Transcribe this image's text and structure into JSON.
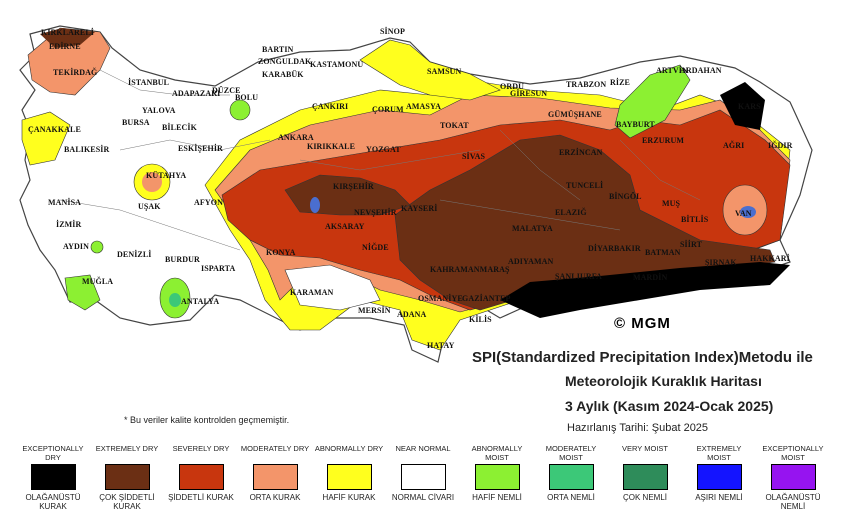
{
  "map": {
    "copyright": "© MGM",
    "cities": [
      "KIRKLARELİ",
      "EDİRNE",
      "TEKİRDAĞ",
      "İSTANBUL",
      "ÇANAKKALE",
      "BALIKESİR",
      "YALOVA",
      "BURSA",
      "BİLECİK",
      "ADAPAZARI",
      "DÜZCE",
      "BOLU",
      "BARTIN",
      "ZONGULDAK",
      "KARABÜK",
      "KASTAMONU",
      "SİNOP",
      "SAMSUN",
      "ORDU",
      "GİRESUN",
      "TRABZON",
      "RİZE",
      "ARTVİN",
      "ARDAHAN",
      "KARS",
      "IĞDIR",
      "AĞRI",
      "ERZURUM",
      "BAYBURT",
      "GÜMÜŞHANE",
      "ERZİNCAN",
      "TOKAT",
      "AMASYA",
      "ÇORUM",
      "ÇANKIRI",
      "ANKARA",
      "KIRIKKALE",
      "YOZGAT",
      "SİVAS",
      "ESKİŞEHİR",
      "KÜTAHYA",
      "UŞAK",
      "AFYON",
      "MANİSA",
      "İZMİR",
      "AYDIN",
      "DENİZLİ",
      "MUĞLA",
      "BURDUR",
      "ISPARTA",
      "ANTALYA",
      "KONYA",
      "KARAMAN",
      "MERSİN",
      "ADANA",
      "OSMANİYE",
      "GAZİANTEP",
      "KİLİS",
      "HATAY",
      "KAHRAMANMARAŞ",
      "ADIYAMAN",
      "MALATYA",
      "ELAZIĞ",
      "TUNCELİ",
      "BİNGÖL",
      "MUŞ",
      "BİTLİS",
      "VAN",
      "HAKKARİ",
      "ŞIRNAK",
      "SİİRT",
      "BATMAN",
      "DİYARBAKIR",
      "ŞANLIURFA",
      "MARDİN",
      "NİĞDE",
      "AKSARAY",
      "NEVŞEHİR",
      "KIRŞEHİR",
      "KAYSERİ"
    ]
  },
  "title": {
    "line1": "SPI(Standardized Precipitation Index)Metodu ile",
    "line2": "Meteorolojik Kuraklık Haritası",
    "line3": "3 Aylık (Kasım 2024-Ocak 2025)",
    "prepared": "Hazırlanış Tarihi: Şubat 2025"
  },
  "note": "* Bu veriler kalite kontrolden geçmemiştir.",
  "legend": [
    {
      "en": "EXCEPTIONALLY DRY",
      "tr": "OLAĞANÜSTÜ KURAK",
      "color": "#000000"
    },
    {
      "en": "EXTREMELY DRY",
      "tr": "ÇOK ŞİDDETLİ KURAK",
      "color": "#6b2f14"
    },
    {
      "en": "SEVERELY DRY",
      "tr": "ŞİDDETLİ KURAK",
      "color": "#c8360e"
    },
    {
      "en": "MODERATELY DRY",
      "tr": "ORTA KURAK",
      "color": "#f3956a"
    },
    {
      "en": "ABNORMALLY DRY",
      "tr": "HAFİF KURAK",
      "color": "#ffff1e"
    },
    {
      "en": "NEAR NORMAL",
      "tr": "NORMAL CİVARI",
      "color": "#ffffff"
    },
    {
      "en": "ABNORMALLY MOIST",
      "tr": "HAFİF NEMLİ",
      "color": "#8cf032"
    },
    {
      "en": "MODERATELY MOIST",
      "tr": "ORTA NEMLİ",
      "color": "#3cc878"
    },
    {
      "en": "VERY MOIST",
      "tr": "ÇOK NEMLİ",
      "color": "#2e8c5a"
    },
    {
      "en": "EXTREMELY MOIST",
      "tr": "AŞIRI NEMLİ",
      "color": "#1414ff"
    },
    {
      "en": "EXCEPTIONALLY MOIST",
      "tr": "OLAĞANÜSTÜ NEMLİ",
      "color": "#9614f0"
    }
  ]
}
